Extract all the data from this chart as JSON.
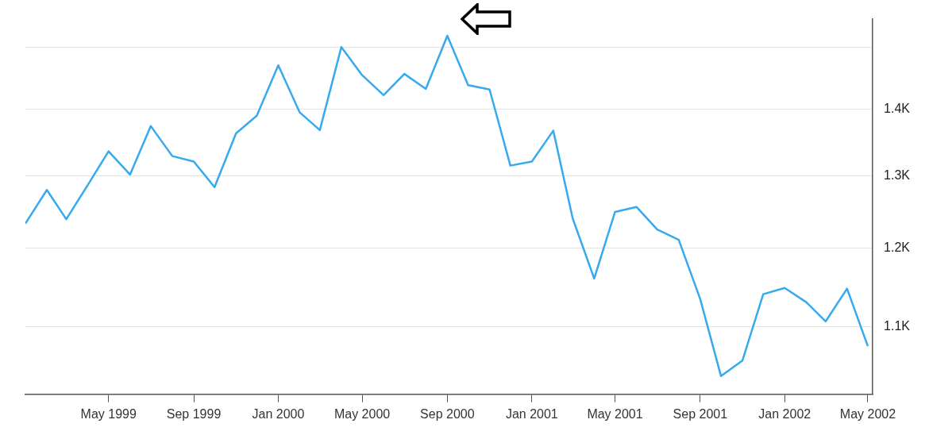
{
  "chart_data": {
    "type": "line",
    "log": "y",
    "grid": "y",
    "marker": "none",
    "x": [
      "1999-01",
      "1999-02",
      "1999-03",
      "1999-04",
      "1999-05",
      "1999-06",
      "1999-07",
      "1999-08",
      "1999-09",
      "1999-10",
      "1999-11",
      "1999-12",
      "2000-01",
      "2000-02",
      "2000-03",
      "2000-04",
      "2000-05",
      "2000-06",
      "2000-07",
      "2000-08",
      "2000-09",
      "2000-10",
      "2000-11",
      "2000-12",
      "2001-01",
      "2001-02",
      "2001-03",
      "2001-04",
      "2001-05",
      "2001-06",
      "2001-07",
      "2001-08",
      "2001-09",
      "2001-10",
      "2001-11",
      "2001-12",
      "2002-01",
      "2002-02",
      "2002-03",
      "2002-04",
      "2002-05"
    ],
    "series": [
      {
        "color": "#36a9ef",
        "values": [
          1233,
          1280,
          1239,
          1287,
          1336,
          1302,
          1374,
          1329,
          1321,
          1284,
          1363,
          1390,
          1470,
          1395,
          1368,
          1500,
          1454,
          1422,
          1456,
          1432,
          1519,
          1438,
          1431,
          1315,
          1321,
          1367,
          1240,
          1160,
          1249,
          1256,
          1225,
          1211,
          1134,
          1041,
          1059,
          1140,
          1148,
          1130,
          1106,
          1147,
          1076
        ]
      }
    ],
    "xlim": [
      "1999-01-01",
      "2002-05-08"
    ],
    "xticks": [
      {
        "value": "1999-05",
        "label": "May 1999"
      },
      {
        "value": "1999-09",
        "label": "Sep 1999"
      },
      {
        "value": "2000-01",
        "label": "Jan 2000"
      },
      {
        "value": "2000-05",
        "label": "May 2000"
      },
      {
        "value": "2000-09",
        "label": "Sep 2000"
      },
      {
        "value": "2001-01",
        "label": "Jan 2001"
      },
      {
        "value": "2001-05",
        "label": "May 2001"
      },
      {
        "value": "2001-09",
        "label": "Sep 2001"
      },
      {
        "value": "2002-01",
        "label": "Jan 2002"
      },
      {
        "value": "2002-05",
        "label": "May 2002"
      }
    ],
    "ylim": [
      1020,
      1548
    ],
    "yticks": [
      {
        "value": 1100,
        "label": "1.1K"
      },
      {
        "value": 1200,
        "label": "1.2K"
      },
      {
        "value": 1300,
        "label": "1.3K"
      },
      {
        "value": 1400,
        "label": "1.4K"
      },
      {
        "value": 1500,
        "label": null
      }
    ]
  }
}
